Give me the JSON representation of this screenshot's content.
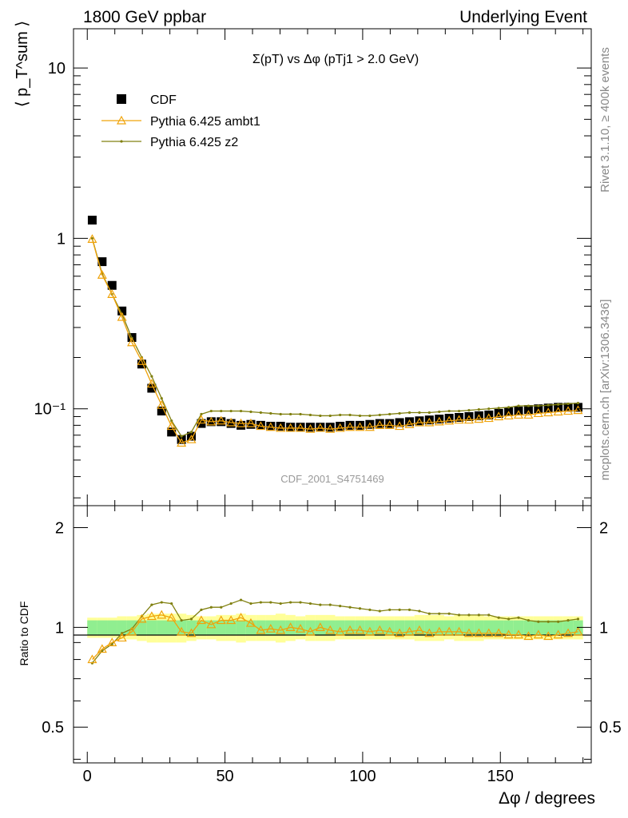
{
  "header": {
    "left": "1800 GeV ppbar",
    "right": "Underlying Event"
  },
  "side_labels": {
    "rivet": "Rivet 3.1.10, ≥ 400k events",
    "mcplots": "mcplots.cern.ch [arXiv:1306.3436]"
  },
  "chart_data": [
    {
      "type": "scatter",
      "title": "Σ(pT) vs Δφ (pTj1 > 2.0 GeV)",
      "ylabel": "⟨ p_T^sum ⟩",
      "xlabel": "",
      "yscale": "log",
      "ylim": [
        0.027,
        17
      ],
      "xlim": [
        -5,
        183
      ],
      "ytick_labels": [
        "10⁻¹",
        "1",
        "10"
      ],
      "watermark": "CDF_2001_S4751469",
      "legend": [
        "CDF",
        "Pythia 6.425 ambt1",
        "Pythia 6.425 z2"
      ],
      "legend_position": "top-left",
      "x": [
        1.8,
        5.4,
        9,
        12.6,
        16.2,
        19.8,
        23.4,
        27,
        30.6,
        34.2,
        37.8,
        41.4,
        45,
        48.6,
        52.2,
        55.8,
        59.4,
        63,
        66.6,
        70.2,
        73.8,
        77.4,
        81,
        84.6,
        88.2,
        91.8,
        95.4,
        99,
        102.6,
        106.2,
        109.8,
        113.4,
        117,
        120.6,
        124.2,
        127.8,
        131.4,
        135,
        138.6,
        142.2,
        145.8,
        149.4,
        153,
        156.6,
        160.2,
        163.8,
        167.4,
        171,
        174.6,
        178.2
      ],
      "series": [
        {
          "name": "CDF",
          "marker": "square",
          "color": "#000000",
          "values": [
            1.28,
            0.73,
            0.53,
            0.375,
            0.262,
            0.183,
            0.132,
            0.097,
            0.073,
            0.066,
            0.069,
            0.082,
            0.084,
            0.084,
            0.082,
            0.08,
            0.081,
            0.08,
            0.079,
            0.079,
            0.078,
            0.078,
            0.078,
            0.078,
            0.078,
            0.079,
            0.08,
            0.08,
            0.081,
            0.082,
            0.082,
            0.083,
            0.084,
            0.085,
            0.086,
            0.087,
            0.088,
            0.089,
            0.09,
            0.091,
            0.092,
            0.094,
            0.096,
            0.097,
            0.099,
            0.1,
            0.101,
            0.102,
            0.102,
            0.102
          ]
        },
        {
          "name": "Pythia 6.425 ambt1",
          "marker": "triangle",
          "color": "#f0a30a",
          "values": [
            0.99,
            0.61,
            0.47,
            0.345,
            0.245,
            0.19,
            0.14,
            0.105,
            0.079,
            0.063,
            0.066,
            0.086,
            0.084,
            0.085,
            0.083,
            0.082,
            0.082,
            0.079,
            0.078,
            0.077,
            0.077,
            0.077,
            0.076,
            0.077,
            0.076,
            0.077,
            0.078,
            0.078,
            0.078,
            0.08,
            0.08,
            0.079,
            0.081,
            0.083,
            0.083,
            0.084,
            0.085,
            0.086,
            0.086,
            0.087,
            0.088,
            0.09,
            0.091,
            0.092,
            0.092,
            0.094,
            0.095,
            0.096,
            0.097,
            0.098
          ]
        },
        {
          "name": "Pythia 6.425 z2",
          "marker": "dot",
          "color": "#808010",
          "values": [
            1.0,
            0.62,
            0.47,
            0.36,
            0.26,
            0.2,
            0.155,
            0.115,
            0.085,
            0.069,
            0.073,
            0.093,
            0.097,
            0.097,
            0.097,
            0.097,
            0.096,
            0.095,
            0.094,
            0.093,
            0.093,
            0.093,
            0.092,
            0.091,
            0.091,
            0.092,
            0.092,
            0.091,
            0.091,
            0.092,
            0.093,
            0.094,
            0.095,
            0.095,
            0.095,
            0.096,
            0.097,
            0.097,
            0.098,
            0.099,
            0.1,
            0.101,
            0.102,
            0.104,
            0.104,
            0.104,
            0.105,
            0.106,
            0.107,
            0.108
          ]
        }
      ]
    },
    {
      "type": "line",
      "title": "",
      "ylabel": "Ratio to CDF",
      "xlabel": "Δφ / degrees",
      "yscale": "log",
      "ylim": [
        0.39,
        2.33
      ],
      "xlim": [
        -5,
        183
      ],
      "ytick_labels": [
        "0.5",
        "1",
        "2"
      ],
      "xtick_labels": [
        "0",
        "50",
        "100",
        "150"
      ],
      "band_colors": {
        "inner": "#90ee90",
        "outer": "#ffff99"
      },
      "x": [
        1.8,
        5.4,
        9,
        12.6,
        16.2,
        19.8,
        23.4,
        27,
        30.6,
        34.2,
        37.8,
        41.4,
        45,
        48.6,
        52.2,
        55.8,
        59.4,
        63,
        66.6,
        70.2,
        73.8,
        77.4,
        81,
        84.6,
        88.2,
        91.8,
        95.4,
        99,
        102.6,
        106.2,
        109.8,
        113.4,
        117,
        120.6,
        124.2,
        127.8,
        131.4,
        135,
        138.6,
        142.2,
        145.8,
        149.4,
        153,
        156.6,
        160.2,
        163.8,
        167.4,
        171,
        174.6,
        178.2
      ],
      "bands": {
        "inner": [
          0.05,
          0.05,
          0.05,
          0.05,
          0.05,
          0.05,
          0.05,
          0.05,
          0.05,
          0.05,
          0.05,
          0.05,
          0.05,
          0.05,
          0.05,
          0.05,
          0.05,
          0.05,
          0.05,
          0.05,
          0.05,
          0.05,
          0.05,
          0.05,
          0.05,
          0.05,
          0.05,
          0.05,
          0.05,
          0.05,
          0.05,
          0.05,
          0.05,
          0.05,
          0.05,
          0.05,
          0.05,
          0.05,
          0.05,
          0.05,
          0.05,
          0.05,
          0.05,
          0.05,
          0.05,
          0.05,
          0.05,
          0.05,
          0.05,
          0.05
        ],
        "outer": [
          0.07,
          0.07,
          0.07,
          0.08,
          0.08,
          0.09,
          0.1,
          0.1,
          0.1,
          0.1,
          0.09,
          0.08,
          0.08,
          0.09,
          0.09,
          0.1,
          0.09,
          0.09,
          0.09,
          0.1,
          0.09,
          0.08,
          0.09,
          0.09,
          0.09,
          0.08,
          0.08,
          0.08,
          0.08,
          0.08,
          0.08,
          0.08,
          0.08,
          0.09,
          0.09,
          0.09,
          0.08,
          0.09,
          0.09,
          0.09,
          0.08,
          0.08,
          0.08,
          0.08,
          0.08,
          0.08,
          0.08,
          0.08,
          0.08,
          0.08
        ]
      },
      "series": [
        {
          "name": "Pythia 6.425 ambt1",
          "marker": "triangle",
          "color": "#f0a30a",
          "values": [
            0.8,
            0.86,
            0.9,
            0.93,
            0.97,
            1.06,
            1.08,
            1.09,
            1.07,
            0.97,
            0.96,
            1.05,
            1.02,
            1.05,
            1.05,
            1.07,
            1.03,
            0.98,
            0.99,
            0.98,
            1.0,
            0.99,
            0.97,
            1.0,
            0.98,
            0.97,
            0.98,
            0.98,
            0.97,
            0.98,
            0.97,
            0.96,
            0.97,
            0.98,
            0.96,
            0.97,
            0.97,
            0.97,
            0.96,
            0.96,
            0.96,
            0.96,
            0.95,
            0.95,
            0.94,
            0.95,
            0.94,
            0.95,
            0.96,
            0.97
          ]
        },
        {
          "name": "Pythia 6.425 z2",
          "marker": "dot",
          "color": "#808010",
          "values": [
            0.78,
            0.85,
            0.89,
            0.96,
            0.99,
            1.08,
            1.17,
            1.19,
            1.18,
            1.05,
            1.06,
            1.13,
            1.15,
            1.15,
            1.18,
            1.21,
            1.18,
            1.19,
            1.19,
            1.18,
            1.19,
            1.19,
            1.18,
            1.17,
            1.17,
            1.16,
            1.15,
            1.14,
            1.13,
            1.12,
            1.13,
            1.13,
            1.13,
            1.12,
            1.1,
            1.1,
            1.1,
            1.09,
            1.09,
            1.09,
            1.09,
            1.07,
            1.06,
            1.07,
            1.05,
            1.04,
            1.04,
            1.04,
            1.05,
            1.06
          ]
        }
      ]
    }
  ]
}
